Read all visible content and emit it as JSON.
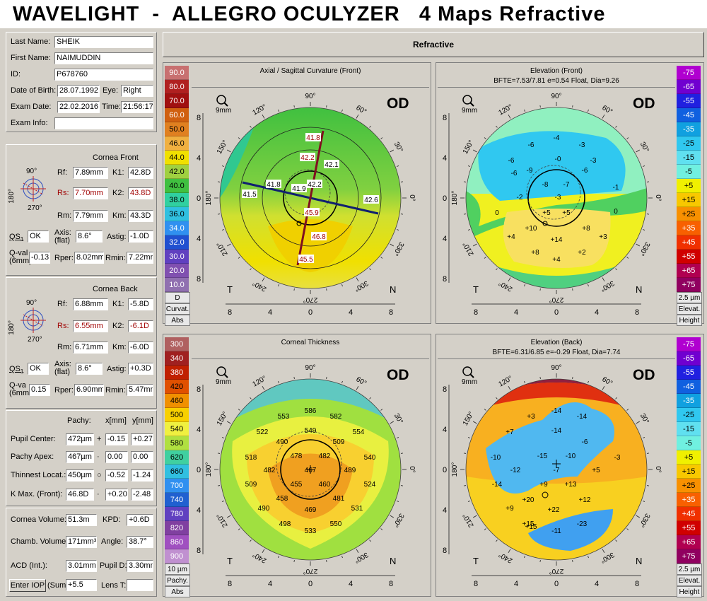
{
  "app_title": "WAVELIGHT  -  ALLEGRO OCULYZER   4 Maps Refractive",
  "refractive_label": "Refractive",
  "patient": {
    "last_name_label": "Last Name:",
    "last_name": "SHEIK",
    "first_name_label": "First Name:",
    "first_name": "NAIMUDDIN",
    "id_label": "ID:",
    "id": "P678760",
    "dob_label": "Date of Birth:",
    "dob": "28.07.1992",
    "eye_label": "Eye:",
    "eye": "Right",
    "exam_date_label": "Exam Date:",
    "exam_date": "22.02.2016",
    "time_label": "Time:",
    "time": "21:56:17",
    "exam_info_label": "Exam Info:",
    "exam_info": ""
  },
  "front": {
    "header": "Cornea Front",
    "rf_label": "Rf:",
    "rf": "7.89mm",
    "k1_label": "K1:",
    "k1": "42.8D",
    "rs_label": "Rs:",
    "rs": "7.70mm",
    "k2_label": "K2:",
    "k2": "43.8D",
    "rm_label": "Rm:",
    "rm": "7.79mm",
    "km_label": "Km:",
    "km": "43.3D",
    "qs_label": "QS",
    "qs_sub": "1",
    "qs": "OK",
    "axis_label": "Axis:",
    "axis_sub": "(flat)",
    "axis": "8.6°",
    "astig_label": "Astig:",
    "astig": "-1.0D",
    "qval_label": "Q-val",
    "qval_sub": "(6mm)",
    "qval": "-0.13",
    "rper_label": "Rper:",
    "rper": "8.02mm",
    "rmin_label": "Rmin:",
    "rmin": "7.22mm",
    "deg_top": "90°",
    "deg_left": "180°",
    "deg_bottom": "270°"
  },
  "back": {
    "header": "Cornea Back",
    "rf_label": "Rf:",
    "rf": "6.88mm",
    "k1_label": "K1:",
    "k1": "-5.8D",
    "rs_label": "Rs:",
    "rs": "6.55mm",
    "k2_label": "K2:",
    "k2": "-6.1D",
    "rm_label": "Rm:",
    "rm": "6.71mm",
    "km_label": "Km:",
    "km": "-6.0D",
    "qs_label": "QS",
    "qs_sub": "1",
    "qs": "OK",
    "axis_label": "Axis:",
    "axis_sub": "(flat)",
    "axis": "8.6°",
    "astig_label": "Astig:",
    "astig": "+0.3D",
    "qval_label": "Q-va",
    "qval_sub": "(6mm",
    "qval": "0.15",
    "rper_label": "Rper:",
    "rper": "6.90mm",
    "rmin_label": "Rmin:",
    "rmin": "5.47mm",
    "deg_top": "90°",
    "deg_left": "180°",
    "deg_bottom": "270°"
  },
  "pachy": {
    "header": "Pachy:",
    "x_header": "x[mm]",
    "y_header": "y[mm]",
    "rows": [
      {
        "label": "Pupil Center:",
        "value": "472µm",
        "sym": "+",
        "x": "-0.15",
        "y": "+0.27"
      },
      {
        "label": "Pachy Apex:",
        "value": "467µm",
        "sym": "·",
        "x": "0.00",
        "y": "0.00"
      },
      {
        "label": "Thinnest Locat.:",
        "value": "450µm",
        "sym": "○",
        "x": "-0.52",
        "y": "-1.24"
      },
      {
        "label": "K Max. (Front):",
        "value": "46.8D",
        "sym": "·",
        "x": "+0.20",
        "y": "-2.48"
      }
    ]
  },
  "volume": {
    "cornea_volume_label": "Cornea Volume:",
    "cornea_volume": "51.3m",
    "kpd_label": "KPD:",
    "kpd": "+0.6D",
    "chamb_volume_label": "Chamb. Volume:",
    "chamb_volume": "171mm³",
    "angle_label": "Angle:",
    "angle": "38.7°",
    "acd_label": "ACD (Int.):",
    "acd": "3.01mm",
    "pupil_d_label": "Pupil D:",
    "pupil_d": "3.30mm",
    "enter_iop_label": "Enter IOP",
    "sum_label": "(Sum)",
    "sum": "+5.5",
    "lens_t_label": "Lens T:",
    "lens_t": ""
  },
  "maps": {
    "od": "OD",
    "zoom_label": "9mm",
    "t_label": "T",
    "n_label": "N",
    "y_ticks": [
      "8",
      "4",
      "0",
      "4",
      "8"
    ],
    "x_ticks": [
      "8",
      "4",
      "0",
      "4",
      "8"
    ],
    "angles": [
      "90°",
      "60°",
      "30°",
      "0°",
      "330°",
      "300°",
      "270°",
      "240°",
      "210°",
      "180°",
      "150°",
      "120°"
    ],
    "axial": {
      "title": "Axial / Sagittal Curvature (Front)",
      "scale_colors": [
        "#c87070",
        "#b02020",
        "#a01010",
        "#d06010",
        "#e08020",
        "#f0b040",
        "#f0e000",
        "#a0d040",
        "#40c040",
        "#30d0a0",
        "#30c0e0",
        "#3090f0",
        "#2050d0",
        "#6040c0",
        "#8050b0",
        "#9070b0",
        "#c090c0"
      ],
      "scale_values": [
        "90.0",
        "80.0",
        "70.0",
        "60.0",
        "50.0",
        "46.0",
        "44.0",
        "42.0",
        "40.0",
        "38.0",
        "36.0",
        "34.0",
        "32.0",
        "30.0",
        "20.0",
        "10.0"
      ],
      "unit": "D",
      "footer1": "Curvat.",
      "footer2": "Abs",
      "labels": [
        "41.8",
        "42.2",
        "42.1",
        "41.8",
        "41.9",
        "42.2",
        "41.5",
        "42.6",
        "45.9",
        "46.8",
        "45.5"
      ]
    },
    "elev_front": {
      "title": "Elevation (Front)",
      "subtitle": "BFTE=7.53/7.81 e=0.54 Float, Dia=9.26",
      "scale_values": [
        "-75",
        "-65",
        "-55",
        "-45",
        "-35",
        "-25",
        "-15",
        "-5",
        "+5",
        "+15",
        "+25",
        "+35",
        "+45",
        "+55",
        "+65",
        "+75"
      ],
      "scale_colors": [
        "#b000d0",
        "#7000d0",
        "#2020e0",
        "#1060e0",
        "#10a0e0",
        "#30c8f0",
        "#60e0f0",
        "#70f0e0",
        "#f0f000",
        "#f8c800",
        "#f89000",
        "#f86000",
        "#f03000",
        "#d00000",
        "#b00050",
        "#900060"
      ],
      "unit": "2.5 µm",
      "footer1": "Elevat.",
      "footer2": "Height",
      "labels": [
        "-4",
        "-6",
        "-3",
        "-6",
        "-0",
        "-3",
        "-6",
        "-9",
        "-6",
        "-8",
        "-7",
        "-3",
        "-2",
        "-1",
        "0",
        "0",
        "+5",
        "+5",
        "+10",
        "+8",
        "+4",
        "+14",
        "+3",
        "+8",
        "+2",
        "+4"
      ]
    },
    "thickness": {
      "title": "Corneal Thickness",
      "scale_values": [
        "300",
        "340",
        "380",
        "420",
        "460",
        "500",
        "540",
        "580",
        "620",
        "660",
        "700",
        "740",
        "780",
        "820",
        "860",
        "900"
      ],
      "scale_colors": [
        "#b06060",
        "#a02020",
        "#c02000",
        "#e05000",
        "#f09000",
        "#f8d000",
        "#f0f040",
        "#b0e040",
        "#40d0a0",
        "#30c0e0",
        "#3090f0",
        "#2060d0",
        "#6040c0",
        "#8040a0",
        "#a050c0",
        "#c090d0"
      ],
      "unit": "10 µm",
      "footer1": "Pachy.",
      "footer2": "Abs",
      "labels": [
        "553",
        "586",
        "582",
        "522",
        "549",
        "554",
        "490",
        "509",
        "518",
        "478",
        "482",
        "540",
        "482",
        "467",
        "489",
        "509",
        "455",
        "460",
        "524",
        "458",
        "481",
        "490",
        "469",
        "531",
        "498",
        "533",
        "550"
      ]
    },
    "elev_back": {
      "title": "Elevation (Back)",
      "subtitle": "BFTE=6.31/6.85 e=-0.29 Float, Dia=7.74",
      "unit": "2.5 µm",
      "footer1": "Elevat.",
      "footer2": "Height",
      "labels": [
        "+3",
        "-14",
        "-14",
        "+7",
        "-14",
        "-6",
        "-10",
        "-15",
        "-10",
        "-3",
        "-12",
        "-7",
        "+5",
        "-14",
        "+9",
        "+13",
        "+15",
        "+20",
        "+12",
        "+9",
        "+22",
        "+15",
        "-11",
        "-23"
      ]
    }
  }
}
